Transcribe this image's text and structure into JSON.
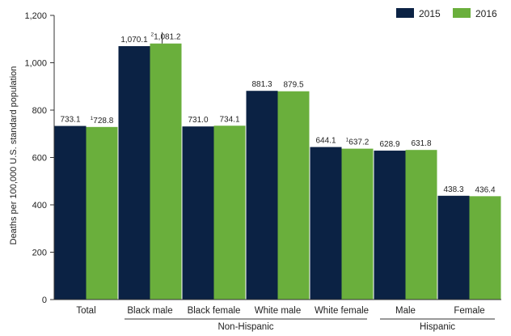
{
  "chart_data": {
    "type": "bar",
    "ylabel": "Deaths per 100,000 U.S. standard population",
    "xlabel": "",
    "ylim": [
      0,
      1200
    ],
    "yticks": [
      0,
      200,
      400,
      600,
      800,
      1000,
      1200
    ],
    "ytick_labels": [
      "0",
      "200",
      "400",
      "600",
      "800",
      "1,000",
      "1,200"
    ],
    "categories": [
      "Total",
      "Black male",
      "Black female",
      "White male",
      "White female",
      "Male",
      "Female"
    ],
    "groups": [
      {
        "label": "Non-Hispanic",
        "categories": [
          "Black male",
          "Black female",
          "White male",
          "White female"
        ]
      },
      {
        "label": "Hispanic",
        "categories": [
          "Male",
          "Female"
        ]
      }
    ],
    "series": [
      {
        "name": "2015",
        "color": "#0b2244",
        "values": [
          733.1,
          1070.1,
          731.0,
          881.3,
          644.1,
          628.9,
          438.3
        ],
        "value_labels": [
          "733.1",
          "1,070.1",
          "731.0",
          "881.3",
          "644.1",
          "628.9",
          "438.3"
        ],
        "superscripts": [
          "",
          "",
          "",
          "",
          "",
          "",
          ""
        ]
      },
      {
        "name": "2016",
        "color": "#6aaf3c",
        "values": [
          728.8,
          1081.2,
          734.1,
          879.5,
          637.2,
          631.8,
          436.4
        ],
        "value_labels": [
          "728.8",
          "1,081.2",
          "734.1",
          "879.5",
          "637.2",
          "631.8",
          "436.4"
        ],
        "superscripts": [
          "1",
          "2",
          "",
          "",
          "1",
          "",
          ""
        ]
      }
    ],
    "legend": {
      "position": "top-right"
    },
    "grid": false
  }
}
